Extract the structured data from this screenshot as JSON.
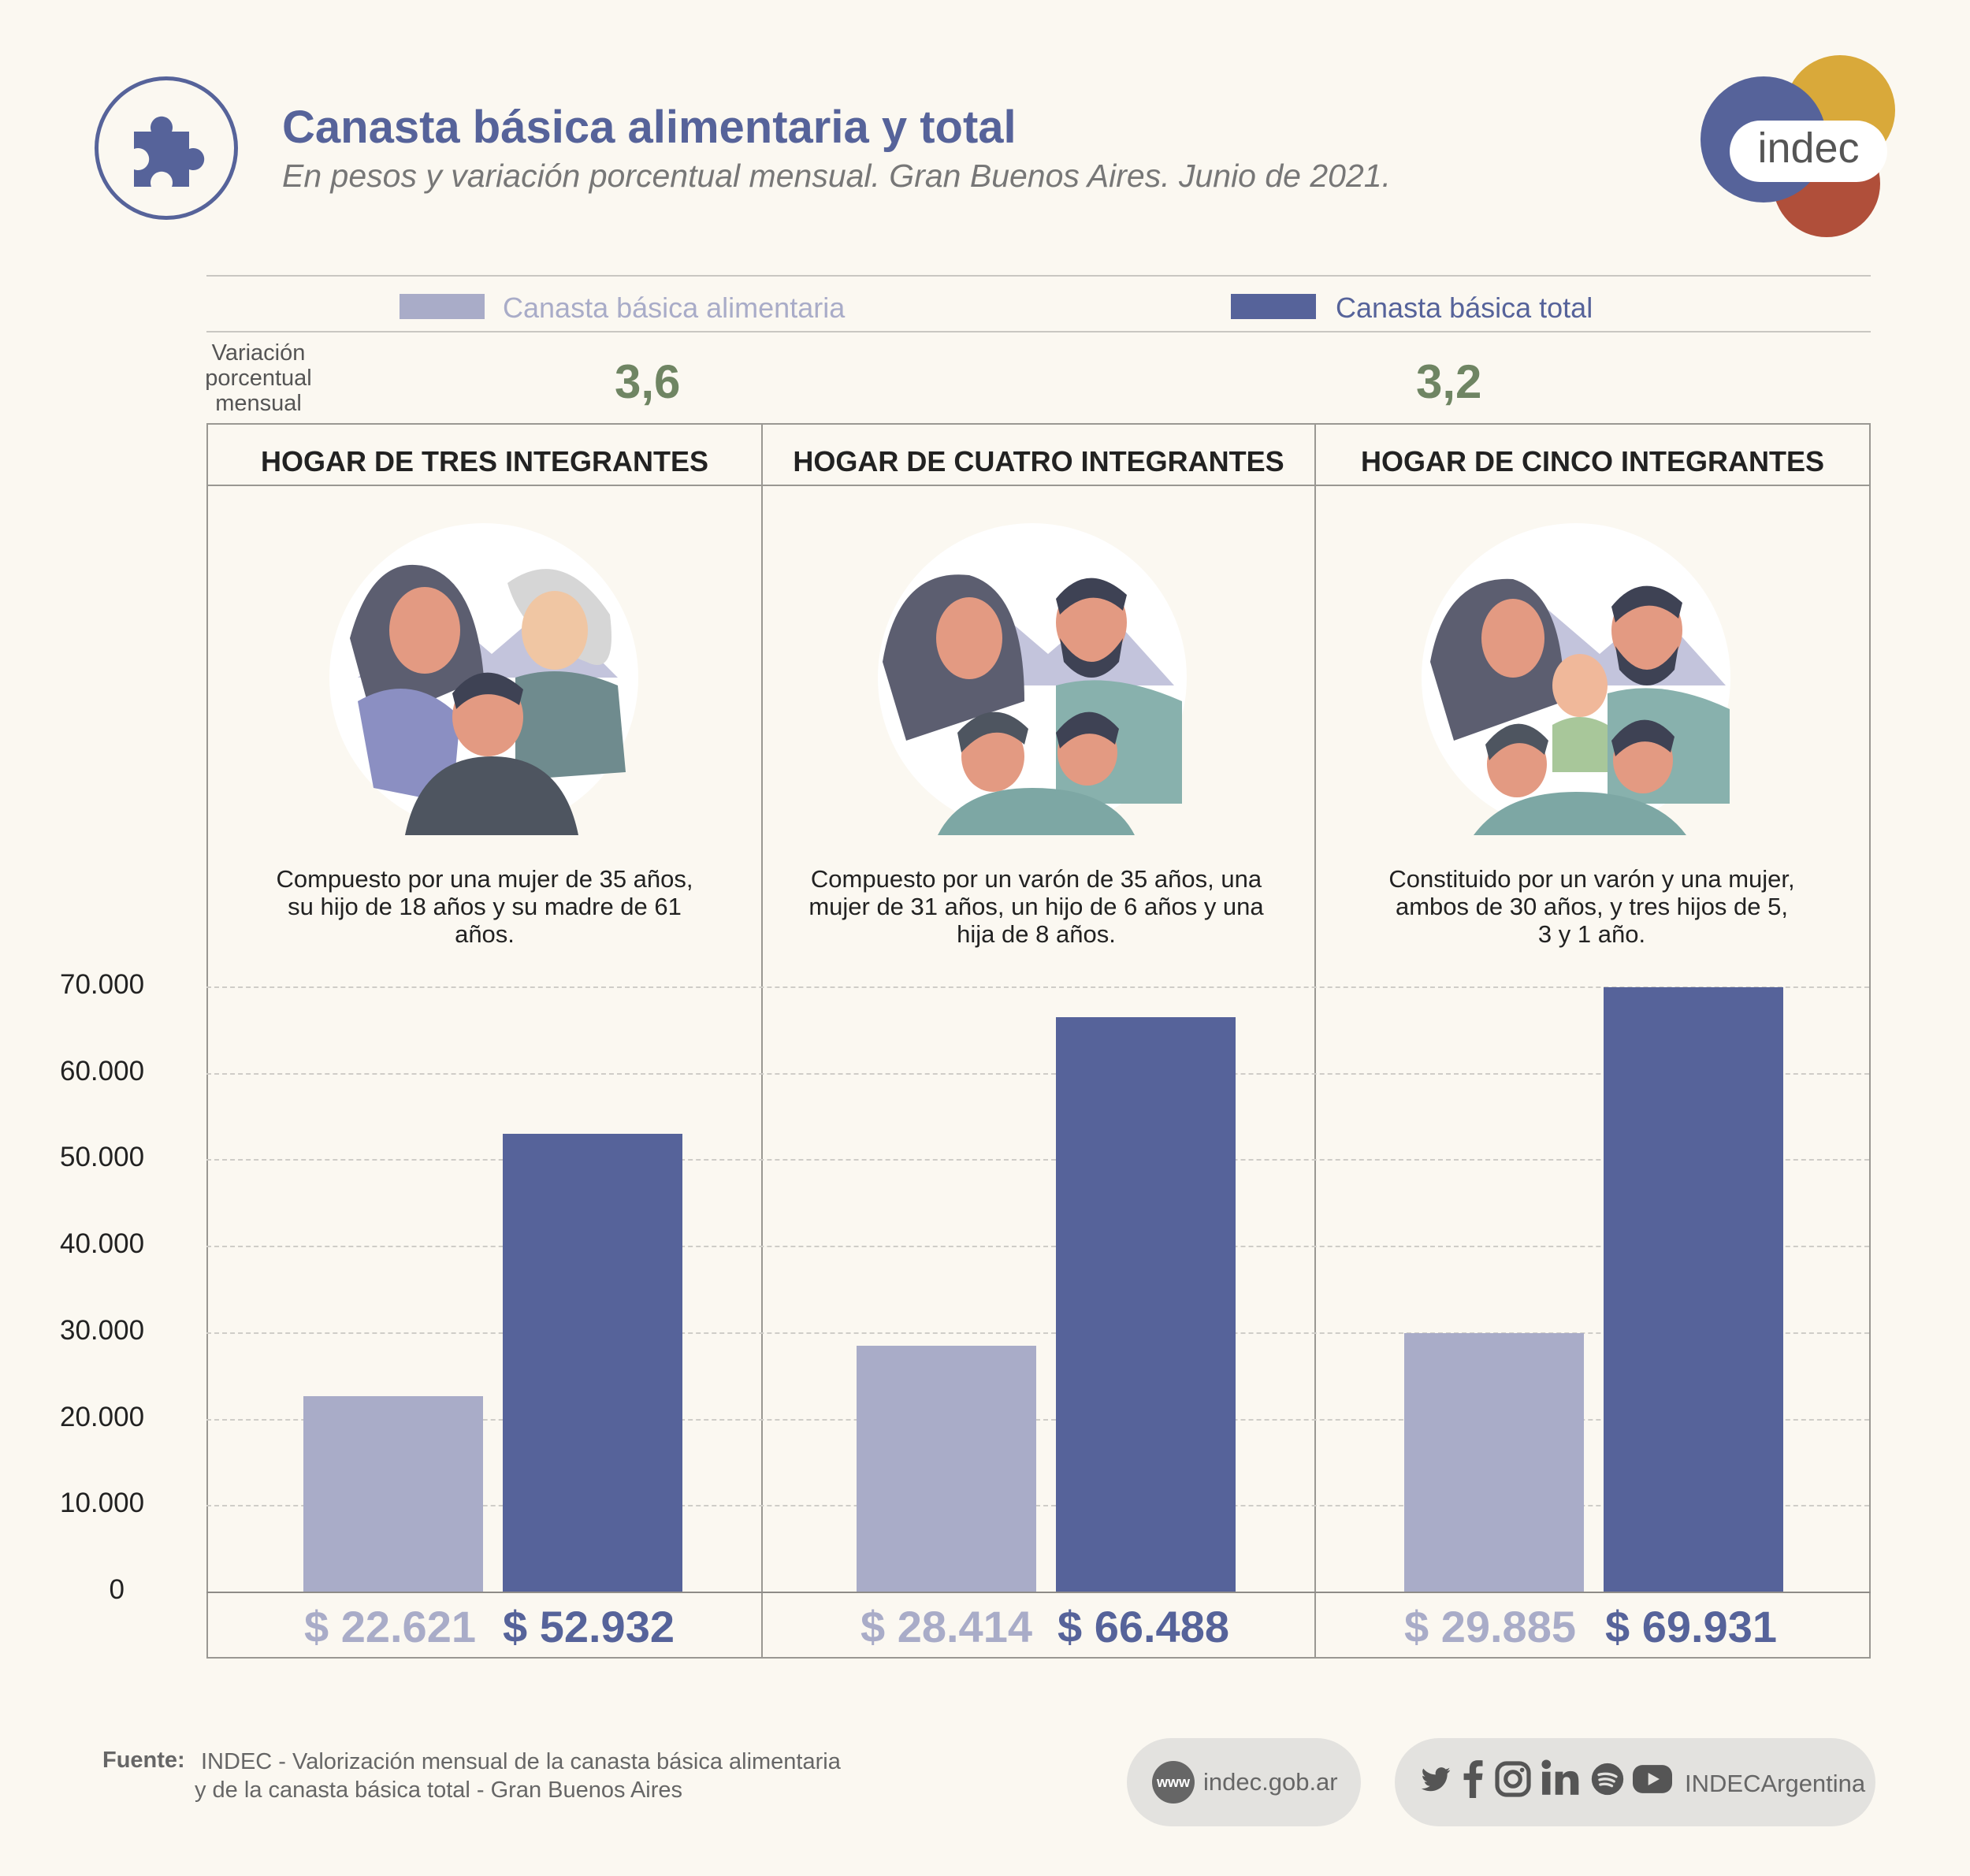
{
  "header": {
    "title": "Canasta básica alimentaria y total",
    "subtitle": "En pesos y variación porcentual mensual. Gran Buenos Aires. Junio de 2021.",
    "logo_text": "indec"
  },
  "legend": {
    "cba_label": "Canasta básica alimentaria",
    "cbt_label": "Canasta básica total"
  },
  "variation": {
    "label": "Variación porcentual mensual",
    "cba_value": "3,6",
    "cbt_value": "3,2"
  },
  "panels": [
    {
      "title": "HOGAR DE TRES INTEGRANTES",
      "description": "Compuesto por una mujer de 35 años, su hijo de 18 años y su madre de 61 años.",
      "cba_label": "$ 22.621",
      "cbt_label": "$ 52.932"
    },
    {
      "title": "HOGAR DE CUATRO INTEGRANTES",
      "description": "Compuesto por un varón de 35 años, una mujer de 31 años, un hijo de 6 años y una hija de 8 años.",
      "cba_label": "$ 28.414",
      "cbt_label": "$ 66.488"
    },
    {
      "title": "HOGAR DE CINCO INTEGRANTES",
      "description": "Constituido por un varón y una mujer, ambos de 30 años, y tres hijos de 5, 3 y 1 año.",
      "cba_label": "$ 29.885",
      "cbt_label": "$ 69.931"
    }
  ],
  "chart_data": {
    "type": "bar",
    "categories": [
      "HOGAR DE TRES INTEGRANTES",
      "HOGAR DE CUATRO INTEGRANTES",
      "HOGAR DE CINCO INTEGRANTES"
    ],
    "series": [
      {
        "name": "Canasta básica alimentaria",
        "values": [
          22621,
          28414,
          29885
        ],
        "color": "#a9acc8"
      },
      {
        "name": "Canasta básica total",
        "values": [
          52932,
          66488,
          69931
        ],
        "color": "#56639a"
      }
    ],
    "ylim": [
      0,
      70000
    ],
    "yticks": [
      "0",
      "10.000",
      "20.000",
      "30.000",
      "40.000",
      "50.000",
      "60.000",
      "70.000"
    ],
    "grid": true
  },
  "footer": {
    "source_label": "Fuente:",
    "source_line1": "INDEC - Valorización mensual de la canasta básica alimentaria",
    "source_line2": "y de la canasta básica total - Gran Buenos Aires",
    "web_icon": "www",
    "website": "indec.gob.ar",
    "social_handle": "INDECArgentina",
    "social_icons": [
      "twitter-icon",
      "facebook-icon",
      "instagram-icon",
      "linkedin-icon",
      "spotify-icon",
      "youtube-icon"
    ]
  }
}
